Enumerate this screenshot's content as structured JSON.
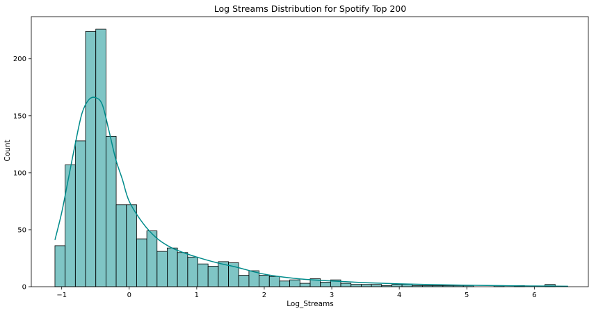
{
  "chart_data": {
    "type": "histogram",
    "title": "Log Streams Distribution for Spotify Top 200",
    "xlabel": "Log_Streams",
    "ylabel": "Count",
    "xlim": [
      -1.45,
      6.8
    ],
    "ylim": [
      0,
      237
    ],
    "xticks": [
      -1,
      0,
      1,
      2,
      3,
      4,
      5,
      6
    ],
    "yticks": [
      0,
      50,
      100,
      150,
      200
    ],
    "xtick_labels": [
      "−1",
      "0",
      "1",
      "2",
      "3",
      "4",
      "5",
      "6"
    ],
    "ytick_labels": [
      "0",
      "50",
      "100",
      "150",
      "200"
    ],
    "grid": false,
    "legend": "none",
    "bin_start": -1.1,
    "bin_width": 0.1512,
    "counts": [
      36,
      107,
      128,
      224,
      226,
      132,
      72,
      72,
      42,
      49,
      31,
      34,
      30,
      26,
      20,
      18,
      22,
      21,
      10,
      14,
      10,
      9,
      5,
      6,
      3,
      7,
      4,
      6,
      3,
      2,
      2,
      2,
      1,
      2,
      2,
      1,
      1,
      1,
      1,
      1,
      1,
      0,
      0,
      1,
      0,
      1,
      0,
      0,
      2
    ],
    "kde": {
      "x": [
        -1.1,
        -1.0,
        -0.9,
        -0.8,
        -0.7,
        -0.6,
        -0.5,
        -0.4,
        -0.3,
        -0.2,
        -0.1,
        0.0,
        0.2,
        0.4,
        0.6,
        0.8,
        1.0,
        1.3,
        1.6,
        2.0,
        2.5,
        3.0,
        3.5,
        4.0,
        4.5,
        5.0,
        5.5,
        6.0,
        6.5
      ],
      "y": [
        41,
        65,
        95,
        125,
        152,
        164,
        166,
        160,
        137,
        112,
        94,
        75,
        56,
        43,
        35,
        30,
        26,
        21,
        17,
        11,
        7,
        5,
        3.5,
        2.5,
        1.8,
        1.3,
        0.9,
        0.6,
        0.4
      ]
    },
    "bar_color": "#008b8b",
    "line_color": "#008b8b"
  }
}
